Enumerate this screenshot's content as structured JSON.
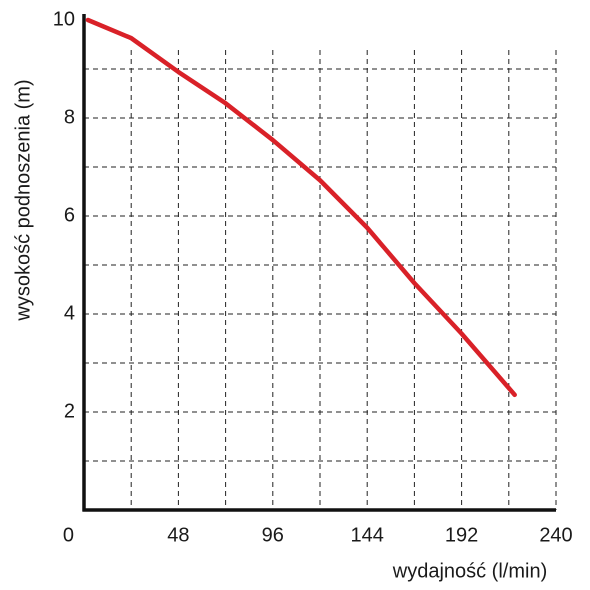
{
  "chart_data": {
    "type": "line",
    "x_label": "wydajność (l/min)",
    "y_label": "wysokość podnoszenia (m)",
    "x": [
      2,
      24,
      48,
      72,
      96,
      120,
      144,
      168,
      192,
      219
    ],
    "series": [
      {
        "color": "#d92128",
        "values": [
          10,
          9.63,
          8.94,
          8.3,
          7.55,
          6.73,
          5.76,
          4.63,
          3.6,
          2.35
        ]
      }
    ],
    "xlim": [
      0,
      240
    ],
    "xticks": [
      0,
      48,
      96,
      144,
      192,
      240
    ],
    "ylim": [
      0,
      10
    ],
    "yticks": [
      2,
      4,
      6,
      8,
      10
    ],
    "xgrid": [
      24,
      48,
      72,
      96,
      120,
      144,
      168,
      192,
      216,
      240
    ],
    "ygrid": [
      1,
      2,
      3,
      4,
      5,
      6,
      7,
      8,
      9
    ],
    "grid": true
  }
}
